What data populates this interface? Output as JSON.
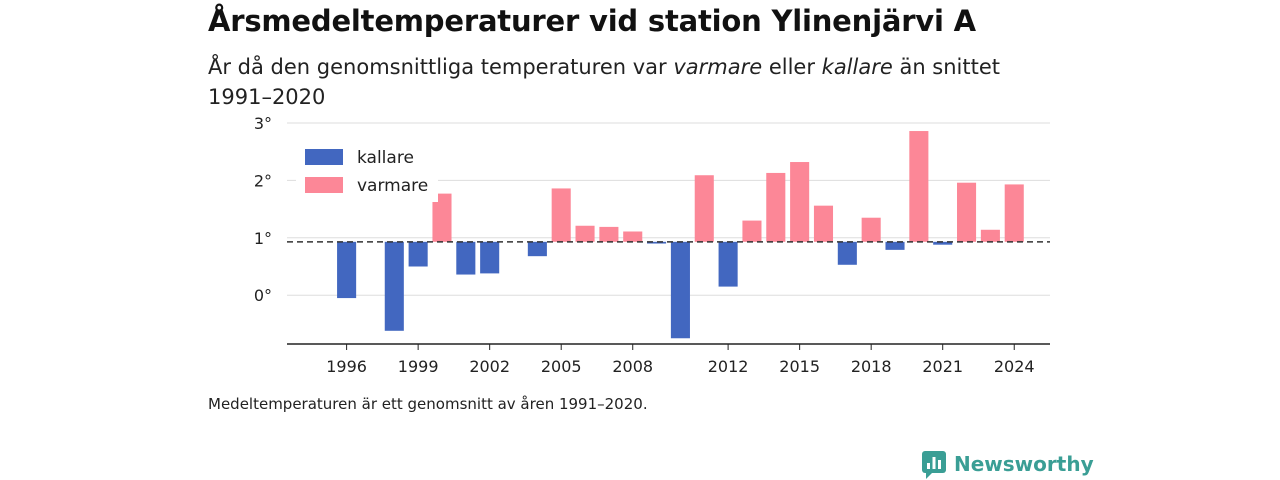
{
  "header": {
    "title": "Årsmedeltemperaturer vid station Ylinenjärvi A",
    "subtitle_pre": "År då den genomsnittliga temperaturen var ",
    "subtitle_warm": "varmare",
    "subtitle_mid": " eller ",
    "subtitle_cold": "kallare",
    "subtitle_post": " än snittet 1991–2020"
  },
  "footnote": "Medeltemperaturen är ett genomsnitt av åren 1991–2020.",
  "brand": {
    "name": "Newsworthy",
    "icon": "newsworthy-logo-icon",
    "color": "#3a9e95"
  },
  "colors": {
    "colder": "#4267c0",
    "warmer": "#fc8797",
    "reference": "#333333",
    "grid": "#dddddd"
  },
  "chart_data": {
    "type": "bar",
    "title": "Årsmedeltemperaturer vid station Ylinenjärvi A",
    "xlabel": "",
    "ylabel": "",
    "reference_value": 0.93,
    "ylim": [
      -0.85,
      3.0
    ],
    "yticks": [
      0,
      1,
      2,
      3
    ],
    "ytick_labels": [
      "0°",
      "1°",
      "2°",
      "3°"
    ],
    "xticks": [
      1996,
      1999,
      2002,
      2005,
      2008,
      2012,
      2015,
      2018,
      2021,
      2024
    ],
    "xlim": [
      1993.5,
      2025.5
    ],
    "grid": true,
    "legend": {
      "placement": "top-left",
      "entries": [
        {
          "key": "colder",
          "label": "kallare"
        },
        {
          "key": "warmer",
          "label": "varmare"
        }
      ]
    },
    "x": [
      1996,
      1998,
      1999,
      2000,
      2001,
      2002,
      2004,
      2005,
      2006,
      2007,
      2008,
      2009,
      2010,
      2011,
      2012,
      2013,
      2014,
      2015,
      2016,
      2017,
      2018,
      2019,
      2020,
      2021,
      2022,
      2023,
      2024
    ],
    "values": [
      -0.05,
      -0.62,
      0.5,
      1.77,
      0.36,
      0.38,
      0.68,
      1.86,
      1.21,
      1.19,
      1.11,
      0.9,
      -0.75,
      2.09,
      0.15,
      1.3,
      2.13,
      2.32,
      1.56,
      0.53,
      1.35,
      0.79,
      2.86,
      0.88,
      1.96,
      1.14,
      1.93
    ]
  }
}
